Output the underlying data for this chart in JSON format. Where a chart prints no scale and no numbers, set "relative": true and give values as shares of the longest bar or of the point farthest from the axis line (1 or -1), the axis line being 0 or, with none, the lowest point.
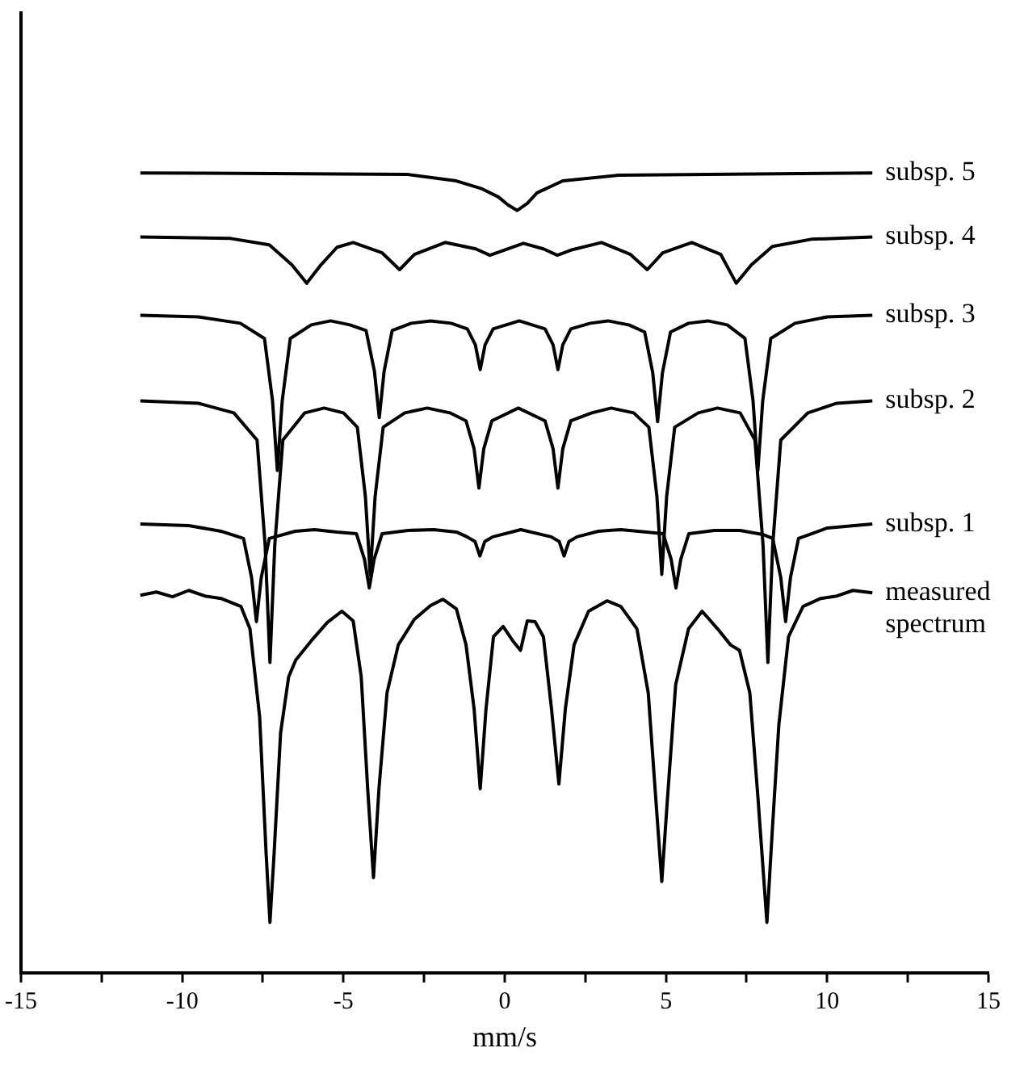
{
  "chart_data": {
    "type": "line",
    "xlabel": "mm/s",
    "xlim": [
      -15,
      15
    ],
    "xticks": [
      -15,
      {
        "value": -12.5,
        "label": null
      },
      -10,
      {
        "value": -7.5,
        "label": null
      },
      -5,
      {
        "value": -2.5,
        "label": null
      },
      0,
      {
        "value": 2.5,
        "label": null
      },
      5,
      {
        "value": 7.5,
        "label": null
      },
      10,
      {
        "value": 12.5,
        "label": null
      },
      15
    ],
    "relative": true,
    "grid": false,
    "legend": false,
    "marker": "none",
    "line_style": "solid",
    "series": [
      {
        "name": "subsp. 5",
        "color": "#000000",
        "x": [
          -11.3,
          -3,
          -1.5,
          -0.7,
          -0.2,
          0.1,
          0.39,
          0.7,
          1.0,
          1.8,
          3.5,
          11.4
        ],
        "values": [
          1.0,
          0.998,
          0.99,
          0.98,
          0.97,
          0.96,
          0.953,
          0.962,
          0.975,
          0.99,
          0.997,
          1.0
        ]
      },
      {
        "name": "subsp. 4",
        "color": "#000000",
        "x": [
          -11.3,
          -8.5,
          -7.3,
          -6.6,
          -6.14,
          -5.7,
          -5.2,
          -4.7,
          -3.8,
          -3.26,
          -2.8,
          -1.85,
          -0.9,
          -0.46,
          0.58,
          1.2,
          1.63,
          2.1,
          3.0,
          3.9,
          4.42,
          4.9,
          5.8,
          6.7,
          7.18,
          7.65,
          8.3,
          9.5,
          11.4
        ],
        "values": [
          0.92,
          0.918,
          0.91,
          0.885,
          0.862,
          0.885,
          0.907,
          0.913,
          0.9,
          0.879,
          0.898,
          0.913,
          0.905,
          0.897,
          0.912,
          0.905,
          0.897,
          0.904,
          0.913,
          0.898,
          0.879,
          0.9,
          0.913,
          0.898,
          0.862,
          0.885,
          0.908,
          0.917,
          0.92
        ]
      },
      {
        "name": "subsp. 3",
        "color": "#000000",
        "x": [
          -11.3,
          -9.5,
          -8.2,
          -7.45,
          -7.2,
          -7.05,
          -6.9,
          -6.65,
          -6.0,
          -5.4,
          -4.8,
          -4.3,
          -4.04,
          -3.89,
          -3.74,
          -3.49,
          -2.9,
          -2.3,
          -1.66,
          -1.16,
          -0.91,
          -0.76,
          -0.61,
          -0.36,
          0.45,
          1.25,
          1.5,
          1.65,
          1.8,
          2.05,
          2.65,
          3.2,
          3.85,
          4.34,
          4.59,
          4.74,
          4.89,
          5.14,
          5.7,
          6.3,
          6.9,
          7.45,
          7.7,
          7.85,
          8.0,
          8.25,
          9.0,
          10,
          11.4
        ],
        "values": [
          0.822,
          0.82,
          0.812,
          0.793,
          0.715,
          0.628,
          0.715,
          0.793,
          0.81,
          0.815,
          0.81,
          0.803,
          0.752,
          0.694,
          0.752,
          0.803,
          0.812,
          0.815,
          0.812,
          0.805,
          0.785,
          0.754,
          0.785,
          0.805,
          0.815,
          0.805,
          0.785,
          0.754,
          0.785,
          0.805,
          0.812,
          0.815,
          0.81,
          0.801,
          0.75,
          0.689,
          0.75,
          0.801,
          0.812,
          0.815,
          0.81,
          0.793,
          0.715,
          0.628,
          0.715,
          0.793,
          0.812,
          0.82,
          0.822
        ]
      },
      {
        "name": "subsp. 2",
        "color": "#000000",
        "x": [
          -11.3,
          -9.5,
          -8.4,
          -7.68,
          -7.43,
          -7.28,
          -7.13,
          -6.88,
          -6.2,
          -5.6,
          -5.0,
          -4.57,
          -4.32,
          -4.17,
          -4.02,
          -3.77,
          -3.1,
          -2.4,
          -1.7,
          -1.2,
          -0.95,
          -0.8,
          -0.65,
          -0.4,
          0.42,
          1.25,
          1.5,
          1.65,
          1.8,
          2.05,
          2.7,
          3.3,
          4.0,
          4.47,
          4.72,
          4.87,
          5.02,
          5.27,
          6.0,
          6.6,
          7.3,
          7.76,
          8.01,
          8.16,
          8.31,
          8.56,
          9.4,
          10.3,
          11.4
        ],
        "values": [
          0.715,
          0.712,
          0.7,
          0.666,
          0.535,
          0.388,
          0.535,
          0.666,
          0.7,
          0.706,
          0.7,
          0.682,
          0.595,
          0.497,
          0.595,
          0.682,
          0.7,
          0.706,
          0.7,
          0.69,
          0.655,
          0.606,
          0.655,
          0.69,
          0.706,
          0.69,
          0.655,
          0.606,
          0.655,
          0.69,
          0.7,
          0.706,
          0.7,
          0.682,
          0.595,
          0.498,
          0.595,
          0.682,
          0.7,
          0.706,
          0.7,
          0.666,
          0.535,
          0.388,
          0.535,
          0.666,
          0.7,
          0.712,
          0.715
        ]
      },
      {
        "name": "subsp. 1",
        "color": "#000000",
        "x": [
          -11.3,
          -9.8,
          -8.8,
          -8.1,
          -7.85,
          -7.7,
          -7.55,
          -7.3,
          -6.5,
          -5.9,
          -5.2,
          -4.6,
          -4.35,
          -4.2,
          -4.05,
          -3.8,
          -3.0,
          -2.2,
          -1.5,
          -1.17,
          -0.92,
          -0.77,
          -0.62,
          -0.37,
          0.5,
          1.44,
          1.69,
          1.84,
          1.99,
          2.24,
          2.9,
          3.6,
          4.4,
          4.91,
          5.16,
          5.31,
          5.46,
          5.71,
          6.5,
          7.3,
          8.0,
          8.31,
          8.56,
          8.71,
          8.86,
          9.11,
          10,
          11.4
        ],
        "values": [
          0.561,
          0.559,
          0.552,
          0.543,
          0.494,
          0.439,
          0.494,
          0.543,
          0.552,
          0.554,
          0.551,
          0.549,
          0.517,
          0.481,
          0.517,
          0.549,
          0.553,
          0.554,
          0.551,
          0.545,
          0.539,
          0.521,
          0.539,
          0.545,
          0.554,
          0.545,
          0.539,
          0.521,
          0.539,
          0.545,
          0.552,
          0.554,
          0.551,
          0.549,
          0.517,
          0.481,
          0.517,
          0.549,
          0.553,
          0.553,
          0.548,
          0.543,
          0.494,
          0.439,
          0.494,
          0.543,
          0.556,
          0.561
        ]
      },
      {
        "name": "measured spectrum",
        "color": "#000000",
        "x": [
          -11.3,
          -10.8,
          -10.3,
          -9.8,
          -9.3,
          -8.8,
          -8.18,
          -7.9,
          -7.6,
          -7.4,
          -7.28,
          -7.15,
          -6.95,
          -6.7,
          -6.48,
          -6.0,
          -5.5,
          -5.05,
          -4.7,
          -4.45,
          -4.25,
          -4.07,
          -3.9,
          -3.65,
          -3.3,
          -2.8,
          -2.3,
          -1.92,
          -1.5,
          -1.2,
          -0.95,
          -0.76,
          -0.58,
          -0.35,
          -0.05,
          0.25,
          0.49,
          0.7,
          0.94,
          1.2,
          1.45,
          1.68,
          1.88,
          2.15,
          2.6,
          3.17,
          3.6,
          4.1,
          4.45,
          4.68,
          4.87,
          5.05,
          5.3,
          5.7,
          6.12,
          6.6,
          7.0,
          7.28,
          7.6,
          7.85,
          8.13,
          8.3,
          8.5,
          8.8,
          9.25,
          9.8,
          10.3,
          10.8,
          11.4
        ],
        "values": [
          0.472,
          0.476,
          0.47,
          0.478,
          0.471,
          0.468,
          0.458,
          0.43,
          0.32,
          0.15,
          0.063,
          0.15,
          0.3,
          0.37,
          0.391,
          0.415,
          0.438,
          0.452,
          0.44,
          0.37,
          0.23,
          0.119,
          0.23,
          0.35,
          0.41,
          0.442,
          0.459,
          0.467,
          0.455,
          0.41,
          0.33,
          0.23,
          0.33,
          0.42,
          0.433,
          0.415,
          0.403,
          0.44,
          0.439,
          0.42,
          0.33,
          0.236,
          0.33,
          0.41,
          0.452,
          0.465,
          0.458,
          0.43,
          0.35,
          0.22,
          0.114,
          0.22,
          0.36,
          0.43,
          0.452,
          0.43,
          0.41,
          0.403,
          0.35,
          0.22,
          0.063,
          0.18,
          0.31,
          0.42,
          0.458,
          0.468,
          0.471,
          0.478,
          0.475
        ]
      }
    ]
  }
}
